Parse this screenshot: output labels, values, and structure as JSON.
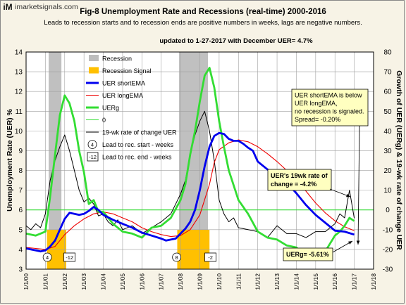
{
  "watermark": {
    "logo": "iM",
    "text": "imarketsignals.com"
  },
  "chart_data": {
    "type": "line",
    "title": "Fig-8  Unemployment Rate and Recessions (real-time) 2000-2016",
    "subtitle": "Leads to recession starts and to recession ends are positive numbers in weeks, lags are negative numbers.",
    "update_note": "updated to 1-27-2017 with December UER= 4.7%",
    "ylabel_left": "Unemployment Rate (UER) %",
    "ylabel_right": "Growth of UER (UERg) & 19-wk rate of change UER",
    "ylim_left": [
      3,
      14
    ],
    "ylim_right": [
      -30,
      80
    ],
    "grid": true,
    "x_tick_labels": [
      "1/1/00",
      "1/1/01",
      "1/1/02",
      "1/1/03",
      "1/1/04",
      "1/1/05",
      "1/1/06",
      "1/1/07",
      "1/1/08",
      "1/1/09",
      "1/1/10",
      "1/1/11",
      "1/1/12",
      "1/1/13",
      "1/1/14",
      "1/1/15",
      "1/1/16",
      "1/1/17",
      "1/1/18"
    ],
    "y_ticks_left": [
      3,
      4,
      5,
      6,
      7,
      8,
      9,
      10,
      11,
      12,
      13,
      14
    ],
    "y_ticks_right": [
      -30,
      -20,
      -10,
      0,
      10,
      20,
      30,
      40,
      50,
      60,
      70,
      80
    ],
    "recessions": [
      {
        "start": 2001.17,
        "end": 2001.83
      },
      {
        "start": 2007.92,
        "end": 2009.42
      }
    ],
    "recession_signals": [
      {
        "start": 2001.08,
        "end": 2002.08
      },
      {
        "start": 2007.83,
        "end": 2009.5
      }
    ],
    "legend": {
      "placement": "top-left",
      "items": [
        {
          "label": "Recession",
          "kind": "bar",
          "color": "#bdbdbd"
        },
        {
          "label": "Recession Signal",
          "kind": "bar",
          "color": "#ffc000"
        },
        {
          "label": "UER shortEMA",
          "kind": "line",
          "color": "#0000ee",
          "width": 3
        },
        {
          "label": "UER longEMA",
          "kind": "line",
          "color": "#ee0000",
          "width": 1
        },
        {
          "label": "UERg",
          "kind": "line",
          "color": "#33dd33",
          "width": 3
        },
        {
          "label": "0",
          "kind": "line",
          "color": "#33dd33",
          "width": 1
        },
        {
          "label": "19-wk rate of change UER",
          "kind": "line",
          "color": "#000000",
          "width": 1
        },
        {
          "label": "Lead to rec. start - weeks",
          "kind": "circle",
          "marker": "4"
        },
        {
          "label": "Lead to rec. end - weeks",
          "kind": "box",
          "marker": "-12"
        }
      ]
    },
    "lead_markers": [
      {
        "kind": "circle",
        "label": "4",
        "x": 2001.1
      },
      {
        "kind": "box",
        "label": "-12",
        "x": 2002.25
      },
      {
        "kind": "circle",
        "label": "8",
        "x": 2007.8
      },
      {
        "kind": "box",
        "label": "-2",
        "x": 2009.55
      }
    ],
    "annotations": [
      {
        "id": "status",
        "lines": [
          "UER shortEMA  is below",
          "UER longEMA,",
          "no recession is signaled.",
          "Spread= -0.20%"
        ]
      },
      {
        "id": "roc",
        "lines": [
          "UER's 19wk rate of",
          "change  = -4.2%"
        ]
      },
      {
        "id": "uerg",
        "lines": [
          "UERg=   -5.61%"
        ]
      }
    ],
    "series": [
      {
        "name": "UER shortEMA",
        "axis": "left",
        "color": "#0000ee",
        "width": 2.8,
        "x": [
          2000.0,
          2000.25,
          2000.5,
          2000.75,
          2001.0,
          2001.25,
          2001.5,
          2001.75,
          2002.0,
          2002.25,
          2002.5,
          2002.75,
          2003.0,
          2003.25,
          2003.5,
          2003.75,
          2004.0,
          2004.5,
          2005.0,
          2005.5,
          2006.0,
          2006.5,
          2007.0,
          2007.25,
          2007.5,
          2007.75,
          2008.0,
          2008.25,
          2008.5,
          2008.75,
          2009.0,
          2009.25,
          2009.5,
          2009.75,
          2010.0,
          2010.25,
          2010.5,
          2010.75,
          2011.0,
          2011.25,
          2011.5,
          2011.75,
          2012.0,
          2012.5,
          2013.0,
          2013.5,
          2014.0,
          2014.5,
          2015.0,
          2015.5,
          2016.0,
          2016.5,
          2017.0
        ],
        "y": [
          4.05,
          4.0,
          3.95,
          3.9,
          3.95,
          4.15,
          4.45,
          5.0,
          5.55,
          5.85,
          5.8,
          5.75,
          5.8,
          5.95,
          6.15,
          6.0,
          5.75,
          5.5,
          5.3,
          5.1,
          4.85,
          4.7,
          4.55,
          4.45,
          4.5,
          4.55,
          4.8,
          5.05,
          5.4,
          6.0,
          7.0,
          8.2,
          9.2,
          9.75,
          9.9,
          9.85,
          9.6,
          9.5,
          9.5,
          9.35,
          9.15,
          9.0,
          8.45,
          8.05,
          7.85,
          7.4,
          6.85,
          6.25,
          5.75,
          5.35,
          4.95,
          4.9,
          4.75
        ]
      },
      {
        "name": "UER longEMA",
        "axis": "left",
        "color": "#ee0000",
        "width": 1.1,
        "x": [
          2000.0,
          2000.5,
          2001.0,
          2001.5,
          2002.0,
          2002.5,
          2003.0,
          2003.5,
          2004.0,
          2004.5,
          2005.0,
          2005.5,
          2006.0,
          2006.5,
          2007.0,
          2007.5,
          2008.0,
          2008.5,
          2009.0,
          2009.5,
          2009.75,
          2010.0,
          2010.5,
          2011.0,
          2011.5,
          2012.0,
          2012.5,
          2013.0,
          2013.5,
          2014.0,
          2014.5,
          2015.0,
          2015.5,
          2016.0,
          2016.5,
          2017.0
        ],
        "y": [
          4.1,
          4.05,
          4.0,
          4.15,
          4.75,
          5.2,
          5.55,
          5.8,
          5.9,
          5.8,
          5.6,
          5.4,
          5.1,
          4.9,
          4.75,
          4.65,
          4.7,
          5.0,
          5.75,
          7.3,
          8.4,
          9.05,
          9.4,
          9.55,
          9.45,
          9.2,
          8.85,
          8.45,
          8.0,
          7.5,
          6.95,
          6.35,
          5.85,
          5.45,
          5.15,
          4.95
        ]
      },
      {
        "name": "UERg",
        "axis": "right",
        "color": "#33dd33",
        "width": 2.8,
        "x": [
          2000.0,
          2000.5,
          2001.0,
          2001.25,
          2001.5,
          2001.75,
          2002.0,
          2002.25,
          2002.5,
          2002.75,
          2003.0,
          2003.25,
          2003.5,
          2003.75,
          2004.0,
          2004.5,
          2005.0,
          2005.5,
          2006.0,
          2006.5,
          2007.0,
          2007.5,
          2008.0,
          2008.25,
          2008.5,
          2008.75,
          2009.0,
          2009.25,
          2009.5,
          2009.75,
          2010.0,
          2010.25,
          2010.5,
          2011.0,
          2011.5,
          2012.0,
          2012.5,
          2013.0,
          2013.5,
          2014.0,
          2014.5,
          2015.0,
          2015.5,
          2016.0,
          2016.25,
          2016.5,
          2016.75,
          2017.0
        ],
        "y": [
          -12,
          -13,
          -11,
          7,
          28,
          48,
          58,
          54,
          45,
          30,
          19,
          3,
          5,
          -1,
          -1,
          -7,
          -11,
          -12,
          -14,
          -9,
          -8,
          -4,
          5,
          13,
          28,
          40,
          55,
          68,
          72,
          62,
          45,
          32,
          20,
          5,
          -2,
          -11,
          -14,
          -15,
          -18,
          -19,
          -24,
          -20,
          -21,
          -13,
          -11,
          -8,
          -4,
          -5.61
        ]
      },
      {
        "name": "19-wk rate of change UER",
        "axis": "right",
        "color": "#000000",
        "width": 1.0,
        "x": [
          2000.0,
          2000.25,
          2000.5,
          2000.75,
          2001.0,
          2001.25,
          2001.5,
          2001.75,
          2002.0,
          2002.25,
          2002.5,
          2002.75,
          2003.0,
          2003.25,
          2003.5,
          2003.75,
          2004.0,
          2004.25,
          2004.5,
          2004.75,
          2005.0,
          2005.5,
          2006.0,
          2006.5,
          2007.0,
          2007.5,
          2008.0,
          2008.25,
          2008.5,
          2008.75,
          2009.0,
          2009.25,
          2009.5,
          2009.75,
          2010.0,
          2010.25,
          2010.5,
          2010.75,
          2011.0,
          2011.5,
          2012.0,
          2012.5,
          2013.0,
          2013.5,
          2014.0,
          2014.5,
          2015.0,
          2015.5,
          2016.0,
          2016.25,
          2016.5,
          2016.75,
          2017.0
        ],
        "y": [
          -8,
          -10,
          -7,
          -9,
          -2,
          15,
          25,
          32,
          38,
          30,
          20,
          10,
          4,
          6,
          3,
          -3,
          -2,
          -6,
          -8,
          -5,
          -10,
          -8,
          -12,
          -9,
          -6,
          -2,
          8,
          15,
          28,
          38,
          45,
          50,
          40,
          25,
          5,
          -2,
          -6,
          -4,
          -9,
          -10,
          -11,
          -14,
          -8,
          -12,
          -12,
          -14,
          -11,
          -11,
          -7,
          -2,
          -4,
          10,
          -4.2
        ]
      }
    ]
  }
}
